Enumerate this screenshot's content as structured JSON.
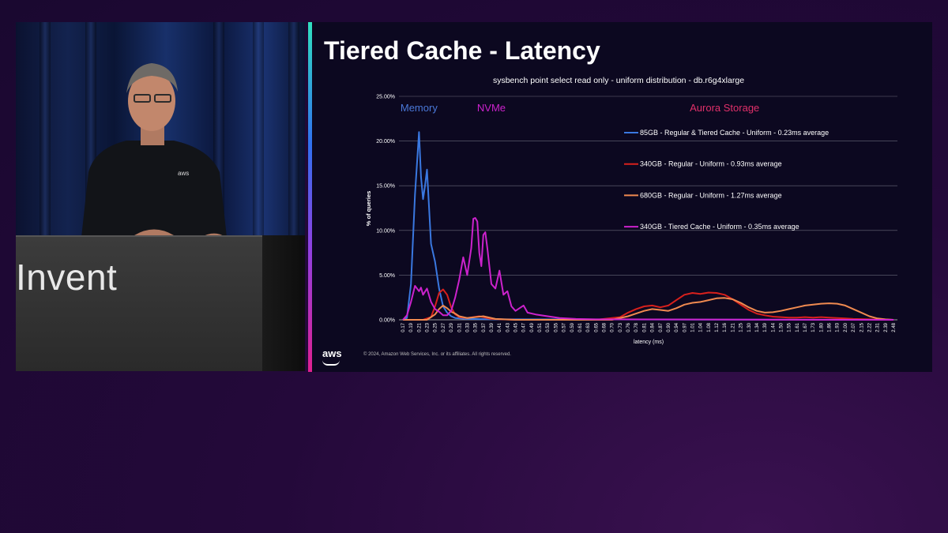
{
  "speaker_panel": {
    "podium_text": "Invent"
  },
  "slide": {
    "title": "Tiered Cache - Latency",
    "aws_logo": "aws",
    "copyright": "© 2024, Amazon Web Services, Inc. or its affiliates. All rights reserved."
  },
  "colors": {
    "memory_label": "#4a78d8",
    "nvme_label": "#cc22cc",
    "aurora_label": "#e0306a",
    "series_85gb": "#3a78e0",
    "series_340gb_regular": "#d8201c",
    "series_680gb": "#f08a50",
    "series_340gb_tiered": "#cc22cc"
  },
  "chart_data": {
    "type": "line",
    "title": "sysbench point select read only - uniform distribution - db.r6g4xlarge",
    "xlabel": "latency (ms)",
    "ylabel": "% of queries",
    "ylim": [
      0,
      25
    ],
    "y_ticks": [
      "0.00%",
      "5.00%",
      "10.00%",
      "15.00%",
      "20.00%",
      "25.00%"
    ],
    "grid": true,
    "legend_position": "right",
    "x_tick_labels": [
      "0.17",
      "0.19",
      "0.21",
      "0.23",
      "0.25",
      "0.27",
      "0.29",
      "0.31",
      "0.33",
      "0.35",
      "0.37",
      "0.39",
      "0.41",
      "0.43",
      "0.45",
      "0.47",
      "0.49",
      "0.51",
      "0.53",
      "0.55",
      "0.57",
      "0.59",
      "0.61",
      "0.63",
      "0.65",
      "0.68",
      "0.70",
      "0.73",
      "0.76",
      "0.78",
      "0.81",
      "0.84",
      "0.87",
      "0.90",
      "0.94",
      "0.97",
      "1.01",
      "1.04",
      "1.08",
      "1.12",
      "1.16",
      "1.21",
      "1.25",
      "1.30",
      "1.34",
      "1.39",
      "1.44",
      "1.50",
      "1.55",
      "1.61",
      "1.67",
      "1.73",
      "1.80",
      "1.86",
      "1.93",
      "2.00",
      "2.07",
      "2.15",
      "2.22",
      "2.31",
      "2.39",
      "2.48"
    ],
    "annotations": [
      {
        "text": "Memory",
        "color_key": "memory_label",
        "at_x": 0.21
      },
      {
        "text": "NVMe",
        "color_key": "nvme_label",
        "at_x": 0.39
      },
      {
        "text": "Aurora Storage",
        "color_key": "aurora_label",
        "at_x": 1.16
      }
    ],
    "series": [
      {
        "name": "85GB - Regular & Tiered Cache - Uniform  - 0.23ms average",
        "color_key": "series_85gb",
        "points": [
          [
            0.17,
            0
          ],
          [
            0.18,
            0.2
          ],
          [
            0.19,
            4
          ],
          [
            0.2,
            14
          ],
          [
            0.21,
            21
          ],
          [
            0.215,
            16
          ],
          [
            0.22,
            13.5
          ],
          [
            0.225,
            15
          ],
          [
            0.23,
            16.8
          ],
          [
            0.24,
            8.5
          ],
          [
            0.25,
            6.5
          ],
          [
            0.26,
            3.5
          ],
          [
            0.27,
            1.5
          ],
          [
            0.28,
            0.8
          ],
          [
            0.29,
            0.4
          ],
          [
            0.3,
            0.2
          ],
          [
            0.33,
            0.1
          ],
          [
            0.4,
            0.05
          ],
          [
            2.48,
            0
          ]
        ]
      },
      {
        "name": "340GB - Regular - Uniform - 0.93ms average",
        "color_key": "series_340gb_regular",
        "points": [
          [
            0.17,
            0
          ],
          [
            0.22,
            0
          ],
          [
            0.24,
            0.3
          ],
          [
            0.25,
            1.5
          ],
          [
            0.26,
            3.0
          ],
          [
            0.27,
            3.4
          ],
          [
            0.28,
            2.8
          ],
          [
            0.29,
            1.4
          ],
          [
            0.3,
            0.6
          ],
          [
            0.31,
            0.3
          ],
          [
            0.33,
            0.2
          ],
          [
            0.36,
            0.4
          ],
          [
            0.39,
            0.1
          ],
          [
            0.45,
            0
          ],
          [
            0.65,
            0
          ],
          [
            0.73,
            0.3
          ],
          [
            0.76,
            0.8
          ],
          [
            0.78,
            1.2
          ],
          [
            0.81,
            1.5
          ],
          [
            0.84,
            1.6
          ],
          [
            0.87,
            1.4
          ],
          [
            0.9,
            1.6
          ],
          [
            0.94,
            2.2
          ],
          [
            0.97,
            2.8
          ],
          [
            1.01,
            3.0
          ],
          [
            1.04,
            2.9
          ],
          [
            1.08,
            3.05
          ],
          [
            1.12,
            3.0
          ],
          [
            1.16,
            2.8
          ],
          [
            1.21,
            2.3
          ],
          [
            1.25,
            1.7
          ],
          [
            1.3,
            1.1
          ],
          [
            1.34,
            0.7
          ],
          [
            1.39,
            0.5
          ],
          [
            1.44,
            0.35
          ],
          [
            1.5,
            0.3
          ],
          [
            1.55,
            0.25
          ],
          [
            1.61,
            0.25
          ],
          [
            1.67,
            0.3
          ],
          [
            1.73,
            0.25
          ],
          [
            1.8,
            0.3
          ],
          [
            1.86,
            0.25
          ],
          [
            1.93,
            0.2
          ],
          [
            2.0,
            0.15
          ],
          [
            2.07,
            0.1
          ],
          [
            2.15,
            0.08
          ],
          [
            2.22,
            0.05
          ],
          [
            2.31,
            0.03
          ],
          [
            2.39,
            0.02
          ],
          [
            2.48,
            0
          ]
        ]
      },
      {
        "name": "680GB - Regular - Uniform - 1.27ms average",
        "color_key": "series_680gb",
        "points": [
          [
            0.17,
            0
          ],
          [
            0.23,
            0
          ],
          [
            0.25,
            0.6
          ],
          [
            0.26,
            1.2
          ],
          [
            0.27,
            1.6
          ],
          [
            0.28,
            1.3
          ],
          [
            0.29,
            0.9
          ],
          [
            0.3,
            0.7
          ],
          [
            0.31,
            0.4
          ],
          [
            0.33,
            0.2
          ],
          [
            0.37,
            0.4
          ],
          [
            0.4,
            0.1
          ],
          [
            0.45,
            0
          ],
          [
            0.7,
            0
          ],
          [
            0.76,
            0.4
          ],
          [
            0.78,
            0.7
          ],
          [
            0.81,
            1.0
          ],
          [
            0.84,
            1.2
          ],
          [
            0.87,
            1.1
          ],
          [
            0.9,
            1.0
          ],
          [
            0.94,
            1.3
          ],
          [
            0.97,
            1.7
          ],
          [
            1.01,
            1.9
          ],
          [
            1.04,
            2.0
          ],
          [
            1.08,
            2.2
          ],
          [
            1.12,
            2.4
          ],
          [
            1.16,
            2.45
          ],
          [
            1.21,
            2.3
          ],
          [
            1.25,
            1.9
          ],
          [
            1.3,
            1.4
          ],
          [
            1.34,
            1.0
          ],
          [
            1.39,
            0.8
          ],
          [
            1.44,
            0.85
          ],
          [
            1.5,
            1.0
          ],
          [
            1.55,
            1.2
          ],
          [
            1.61,
            1.4
          ],
          [
            1.67,
            1.6
          ],
          [
            1.73,
            1.7
          ],
          [
            1.8,
            1.8
          ],
          [
            1.86,
            1.85
          ],
          [
            1.93,
            1.8
          ],
          [
            2.0,
            1.6
          ],
          [
            2.07,
            1.2
          ],
          [
            2.15,
            0.8
          ],
          [
            2.22,
            0.4
          ],
          [
            2.31,
            0.15
          ],
          [
            2.39,
            0.05
          ],
          [
            2.48,
            0
          ]
        ]
      },
      {
        "name": "340GB - Tiered Cache - Uniform - 0.35ms average",
        "color_key": "series_340gb_tiered",
        "points": [
          [
            0.17,
            0
          ],
          [
            0.18,
            0.5
          ],
          [
            0.19,
            2
          ],
          [
            0.2,
            3.8
          ],
          [
            0.21,
            3.2
          ],
          [
            0.215,
            3.6
          ],
          [
            0.22,
            2.8
          ],
          [
            0.23,
            3.5
          ],
          [
            0.24,
            2.0
          ],
          [
            0.25,
            1.2
          ],
          [
            0.26,
            0.9
          ],
          [
            0.27,
            0.5
          ],
          [
            0.28,
            0.5
          ],
          [
            0.29,
            1.0
          ],
          [
            0.3,
            2.5
          ],
          [
            0.31,
            4.5
          ],
          [
            0.32,
            7.0
          ],
          [
            0.325,
            6.0
          ],
          [
            0.33,
            5.0
          ],
          [
            0.34,
            8.0
          ],
          [
            0.345,
            11.3
          ],
          [
            0.35,
            11.4
          ],
          [
            0.355,
            11.0
          ],
          [
            0.36,
            7.5
          ],
          [
            0.365,
            6.0
          ],
          [
            0.37,
            9.5
          ],
          [
            0.375,
            9.8
          ],
          [
            0.38,
            8.0
          ],
          [
            0.39,
            4.0
          ],
          [
            0.4,
            3.5
          ],
          [
            0.41,
            5.5
          ],
          [
            0.42,
            2.8
          ],
          [
            0.43,
            3.2
          ],
          [
            0.44,
            1.5
          ],
          [
            0.45,
            1.0
          ],
          [
            0.47,
            1.6
          ],
          [
            0.48,
            0.8
          ],
          [
            0.5,
            0.6
          ],
          [
            0.53,
            0.4
          ],
          [
            0.56,
            0.2
          ],
          [
            0.6,
            0.1
          ],
          [
            0.65,
            0.05
          ],
          [
            2.48,
            0
          ]
        ]
      }
    ]
  }
}
